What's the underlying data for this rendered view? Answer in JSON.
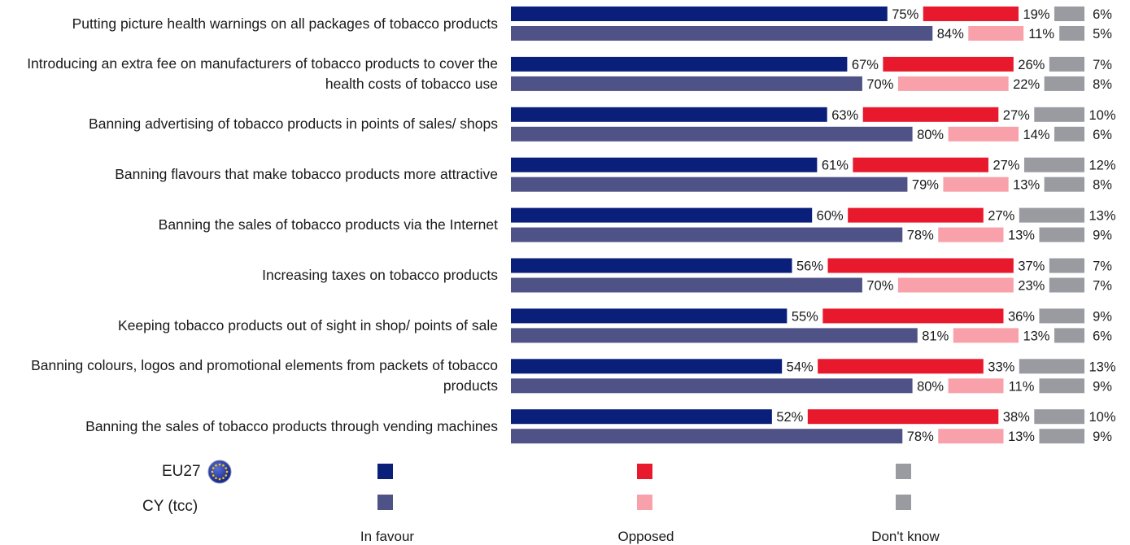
{
  "chart_data": {
    "type": "bar",
    "orientation": "horizontal-stacked",
    "categories": [
      "Putting picture health warnings on all packages of tobacco products",
      "Introducing an extra fee on manufacturers of tobacco products to cover the health costs of tobacco use",
      "Banning advertising of tobacco products in points of sales/ shops",
      "Banning flavours that make tobacco products more attractive",
      "Banning the sales of tobacco products via the Internet",
      "Increasing taxes on tobacco products",
      "Keeping tobacco products out of sight in shop/ points of sale",
      "Banning colours, logos and promotional elements from packets of tobacco products",
      "Banning the sales of tobacco products through vending machines"
    ],
    "label_lines": [
      [
        "Putting picture health warnings on all packages of tobacco products"
      ],
      [
        "Introducing an extra fee on manufacturers of tobacco products to cover the",
        "health costs of tobacco use"
      ],
      [
        "Banning advertising of tobacco products in points of sales/ shops"
      ],
      [
        "Banning flavours that make tobacco products more attractive"
      ],
      [
        "Banning the sales of tobacco products via the Internet"
      ],
      [
        "Increasing taxes on tobacco products"
      ],
      [
        "Keeping tobacco products out of sight in shop/ points of sale"
      ],
      [
        "Banning colours, logos and promotional elements from packets of tobacco",
        "products"
      ],
      [
        "Banning the sales of tobacco products through vending machines"
      ]
    ],
    "groups": [
      "EU27",
      "CY (tcc)"
    ],
    "segments": [
      "In favour",
      "Opposed",
      "Don't know"
    ],
    "series": [
      {
        "name": "EU27",
        "in_favour": [
          75,
          67,
          63,
          61,
          60,
          56,
          55,
          54,
          52
        ],
        "opposed": [
          19,
          26,
          27,
          27,
          27,
          37,
          36,
          33,
          38
        ],
        "dont_know": [
          6,
          7,
          10,
          12,
          13,
          7,
          9,
          13,
          10
        ]
      },
      {
        "name": "CY (tcc)",
        "in_favour": [
          84,
          70,
          80,
          79,
          78,
          70,
          81,
          80,
          78
        ],
        "opposed": [
          11,
          22,
          14,
          13,
          13,
          23,
          13,
          11,
          13
        ],
        "dont_know": [
          5,
          8,
          6,
          8,
          9,
          7,
          6,
          9,
          9
        ]
      }
    ],
    "value_suffix": "%",
    "colors": {
      "EU27": {
        "in_favour": "#0a1f7a",
        "opposed": "#e8192c",
        "dont_know": "#999ba1"
      },
      "CY (tcc)": {
        "in_favour": "#4f5287",
        "opposed": "#f8a1aa",
        "dont_know": "#999ba1"
      }
    },
    "legend_placement": "bottom",
    "grid": false
  }
}
